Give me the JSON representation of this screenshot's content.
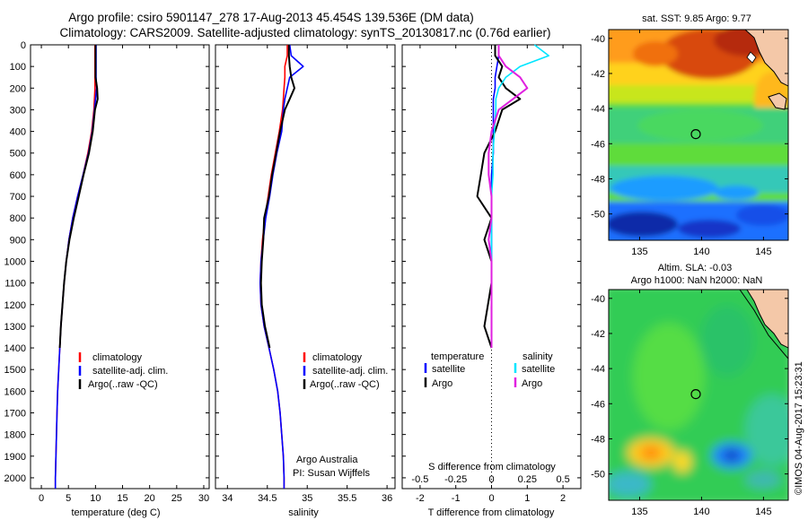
{
  "header": {
    "title_line1": "Argo profile: csiro 5901147_278 17-Aug-2013 45.454S 139.536E (DM data)",
    "title_line2": "Climatology: CARS2009. Satellite-adjusted climatology: synTS_20130817.nc (0.76d earlier)"
  },
  "watermark": "©IMOS 04-Aug-2017 15:23:31",
  "colors": {
    "climatology": "#ff0000",
    "satellite": "#0000ff",
    "argo": "#000000",
    "cyan": "#00e5ff",
    "magenta": "#e020e0"
  },
  "chart_data": [
    {
      "type": "line",
      "panel": "temperature",
      "xlabel": "temperature (deg C)",
      "ylabel": "",
      "xlim": [
        -2,
        31
      ],
      "ylim": [
        2050,
        0
      ],
      "xticks": [
        0,
        5,
        10,
        15,
        20,
        25,
        30
      ],
      "yticks": [
        0,
        100,
        200,
        300,
        400,
        500,
        600,
        700,
        800,
        900,
        1000,
        1100,
        1200,
        1300,
        1400,
        1500,
        1600,
        1700,
        1800,
        1900,
        2000
      ],
      "legend": [
        "climatology",
        "satellite-adj. clim.",
        "Argo(..raw -QC)"
      ],
      "depth": [
        0,
        50,
        100,
        150,
        200,
        250,
        300,
        400,
        500,
        600,
        700,
        800,
        900,
        1000,
        1100,
        1200,
        1300,
        1400,
        1500,
        1600,
        1700,
        1800,
        1900,
        2000,
        2050
      ],
      "series": [
        {
          "name": "climatology",
          "values": [
            9.9,
            9.9,
            9.9,
            9.9,
            9.9,
            9.8,
            9.7,
            9.3,
            8.6,
            7.7,
            6.7,
            5.8,
            5.1,
            4.6,
            4.2,
            3.9,
            3.6,
            3.4,
            3.2,
            3.0,
            2.9,
            2.8,
            2.7,
            2.6,
            2.6
          ]
        },
        {
          "name": "satellite-adj. clim.",
          "values": [
            10.1,
            10.1,
            10.1,
            10.1,
            10.2,
            10.0,
            9.8,
            9.4,
            8.7,
            7.7,
            6.7,
            5.8,
            5.1,
            4.6,
            4.2,
            3.9,
            3.6,
            3.4,
            3.2,
            3.0,
            2.9,
            2.8,
            2.7,
            2.6,
            2.6
          ]
        },
        {
          "name": "Argo(..raw -QC)",
          "values": [
            10.0,
            10.0,
            10.0,
            10.0,
            10.3,
            10.4,
            9.9,
            9.5,
            8.8,
            7.8,
            6.9,
            6.0,
            5.2,
            4.6,
            4.2,
            3.9,
            3.6,
            3.4
          ]
        }
      ]
    },
    {
      "type": "line",
      "panel": "salinity",
      "xlabel": "salinity",
      "xlim": [
        33.85,
        36.1
      ],
      "ylim": [
        2050,
        0
      ],
      "xticks": [
        34,
        34.5,
        35,
        35.5,
        36
      ],
      "legend": [
        "climatology",
        "satellite-adj. clim.",
        "Argo(..raw -QC)"
      ],
      "annotation": [
        "Argo Australia",
        "PI: Susan Wijffels"
      ],
      "depth": [
        0,
        50,
        100,
        150,
        200,
        250,
        300,
        400,
        500,
        600,
        700,
        800,
        900,
        1000,
        1100,
        1200,
        1300,
        1400,
        1500,
        1600,
        1700,
        1800,
        1900,
        2000,
        2050
      ],
      "series": [
        {
          "name": "climatology",
          "values": [
            34.75,
            34.75,
            34.72,
            34.72,
            34.71,
            34.7,
            34.69,
            34.65,
            34.6,
            34.55,
            34.51,
            34.47,
            34.44,
            34.42,
            34.41,
            34.42,
            34.46,
            34.52,
            34.58,
            34.63,
            34.66,
            34.68,
            34.7,
            34.71,
            34.71
          ]
        },
        {
          "name": "satellite-adj. clim.",
          "values": [
            34.78,
            34.8,
            34.95,
            34.78,
            34.75,
            34.72,
            34.7,
            34.68,
            34.62,
            34.57,
            34.53,
            34.48,
            34.45,
            34.42,
            34.41,
            34.42,
            34.46,
            34.52,
            34.58,
            34.63,
            34.66,
            34.68,
            34.7,
            34.71,
            34.71
          ]
        },
        {
          "name": "Argo(..raw -QC)",
          "values": [
            34.77,
            34.77,
            34.78,
            34.8,
            34.84,
            34.78,
            34.72,
            34.66,
            34.61,
            34.56,
            34.52,
            34.46,
            34.45,
            34.43,
            34.42,
            34.43,
            34.47,
            34.53
          ]
        }
      ]
    },
    {
      "type": "line",
      "panel": "difference",
      "xlabel": "T difference from climatology",
      "xlabel_top": "S difference from climatology",
      "xlim": [
        -2.5,
        2.5
      ],
      "ylim": [
        2050,
        0
      ],
      "xticks": [
        -2,
        -1,
        0,
        1,
        2
      ],
      "xticks_top": [
        -0.5,
        -0.25,
        0,
        0.25,
        0.5
      ],
      "legend_headers": [
        "temperature",
        "salinity"
      ],
      "legend": [
        "satellite",
        "Argo",
        "satellite",
        "Argo"
      ],
      "depth": [
        0,
        50,
        100,
        150,
        200,
        250,
        300,
        400,
        500,
        600,
        700,
        800,
        900,
        1000,
        1100,
        1200,
        1300,
        1400
      ],
      "series": [
        {
          "name": "T satellite",
          "values": [
            0.2,
            0.2,
            0.15,
            0.1,
            0.1,
            0.05,
            0.05,
            0.05,
            0.05,
            0.0,
            0.0,
            0.0,
            0.0,
            0.0,
            0.0,
            0.0,
            0.0,
            0.0
          ]
        },
        {
          "name": "T Argo",
          "values": [
            0.1,
            0.1,
            0.3,
            0.2,
            0.4,
            0.8,
            0.3,
            0.1,
            -0.2,
            -0.3,
            -0.4,
            0.0,
            -0.2,
            0.0,
            0.0,
            -0.1,
            -0.2,
            0.0
          ]
        },
        {
          "name": "S satellite",
          "values": [
            0.3,
            0.4,
            0.2,
            0.1,
            0.05,
            0.03,
            0.03,
            0.02,
            0.01,
            0.01,
            0.0,
            0.0,
            0.0,
            0.0,
            0.0,
            0.0,
            0.0,
            0.0
          ]
        },
        {
          "name": "S Argo",
          "values": [
            0.05,
            0.05,
            0.1,
            0.2,
            0.25,
            0.15,
            0.05,
            0.0,
            -0.02,
            -0.02,
            0.0,
            0.0,
            -0.02,
            0.0,
            0.0,
            0.0,
            0.0,
            0.0
          ]
        }
      ]
    },
    {
      "type": "heatmap",
      "panel": "sst map",
      "title": "sat. SST: 9.85 Argo: 9.77",
      "xlim": [
        132.5,
        147
      ],
      "ylim": [
        -51.5,
        -39.5
      ],
      "xticks": [
        135,
        140,
        145
      ],
      "yticks": [
        -40,
        -42,
        -44,
        -46,
        -48,
        -50
      ],
      "marker": {
        "lon": 139.536,
        "lat": -45.454
      }
    },
    {
      "type": "heatmap",
      "panel": "sla map",
      "title_line1": "Altim. SLA: -0.03",
      "title_line2": "Argo h1000: NaN h2000: NaN",
      "xlim": [
        132.5,
        147
      ],
      "ylim": [
        -51.5,
        -39.5
      ],
      "xticks": [
        135,
        140,
        145
      ],
      "yticks": [
        -40,
        -42,
        -44,
        -46,
        -48,
        -50
      ],
      "marker": {
        "lon": 139.536,
        "lat": -45.454
      }
    }
  ]
}
